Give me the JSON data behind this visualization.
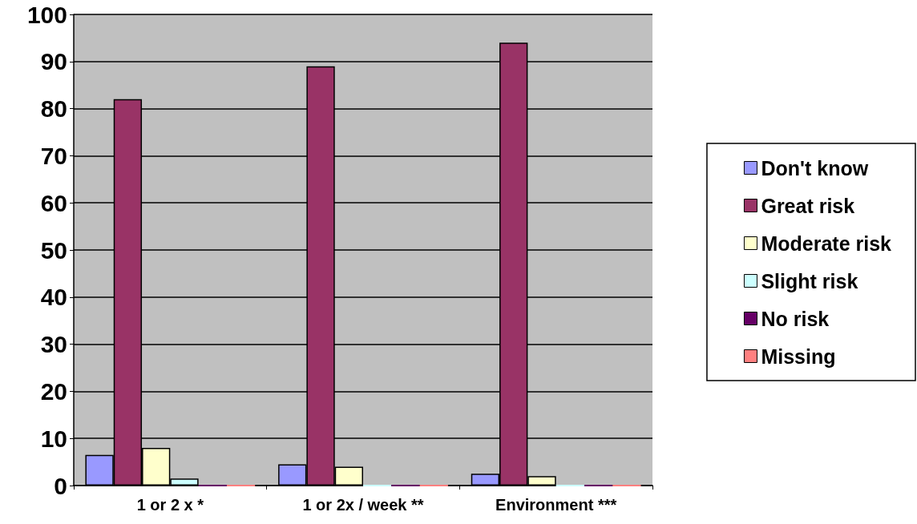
{
  "chart_data": {
    "type": "bar",
    "categories": [
      "1 or 2 x *",
      "1 or 2x / week **",
      "Environment ***"
    ],
    "series": [
      {
        "name": "Don't know",
        "color": "#9999ff",
        "values": [
          6.5,
          4.5,
          2.5
        ]
      },
      {
        "name": "Great risk",
        "color": "#993366",
        "values": [
          82,
          89,
          94
        ]
      },
      {
        "name": "Moderate risk",
        "color": "#ffffcc",
        "values": [
          8,
          4,
          2
        ]
      },
      {
        "name": "Slight risk",
        "color": "#ccffff",
        "values": [
          1.5,
          0,
          0
        ]
      },
      {
        "name": "No risk",
        "color": "#660066",
        "values": [
          0,
          0,
          0
        ]
      },
      {
        "name": "Missing",
        "color": "#ff8080",
        "values": [
          0,
          0,
          0
        ]
      }
    ],
    "ylim": [
      0,
      100
    ],
    "yticks": [
      0,
      10,
      20,
      30,
      40,
      50,
      60,
      70,
      80,
      90,
      100
    ],
    "grid": "y",
    "legend": "right"
  }
}
